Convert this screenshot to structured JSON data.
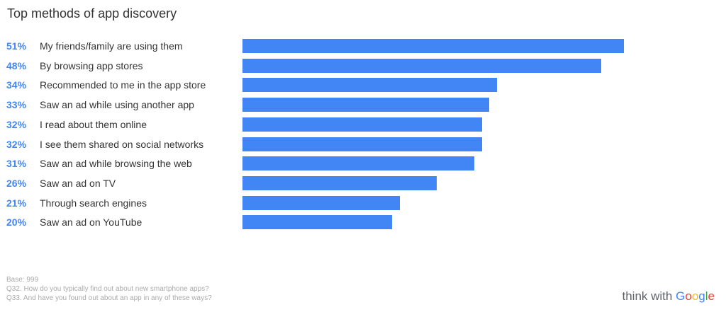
{
  "title": "Top methods of app discovery",
  "colors": {
    "bar": "#4285F4",
    "percent": "#4285F4"
  },
  "chart_data": {
    "type": "bar",
    "orientation": "horizontal",
    "title": "Top methods of app discovery",
    "categories": [
      "My friends/family are using them",
      "By browsing app stores",
      "Recommended to me in the app store",
      "Saw an ad while using another app",
      "I read about them online",
      "I see them shared on social networks",
      "Saw an ad while browsing the web",
      "Saw an ad on TV",
      "Through search engines",
      "Saw an ad on YouTube"
    ],
    "values": [
      51,
      48,
      34,
      33,
      32,
      32,
      31,
      26,
      21,
      20
    ],
    "value_labels": [
      "51%",
      "48%",
      "34%",
      "33%",
      "32%",
      "32%",
      "31%",
      "26%",
      "21%",
      "20%"
    ],
    "xlim": [
      0,
      51
    ],
    "grid": false,
    "legend": "none"
  },
  "footnotes": {
    "base": "Base: 999",
    "q32": "Q32. How do you typically find out about new smartphone apps?",
    "q33": "Q33. And have you found out about an app in any of these ways?"
  },
  "logo": {
    "prefix": "think with",
    "brand": "Google",
    "brand_letter_colors": [
      "#4285F4",
      "#EA4335",
      "#FBBC05",
      "#4285F4",
      "#34A853",
      "#EA4335"
    ]
  }
}
